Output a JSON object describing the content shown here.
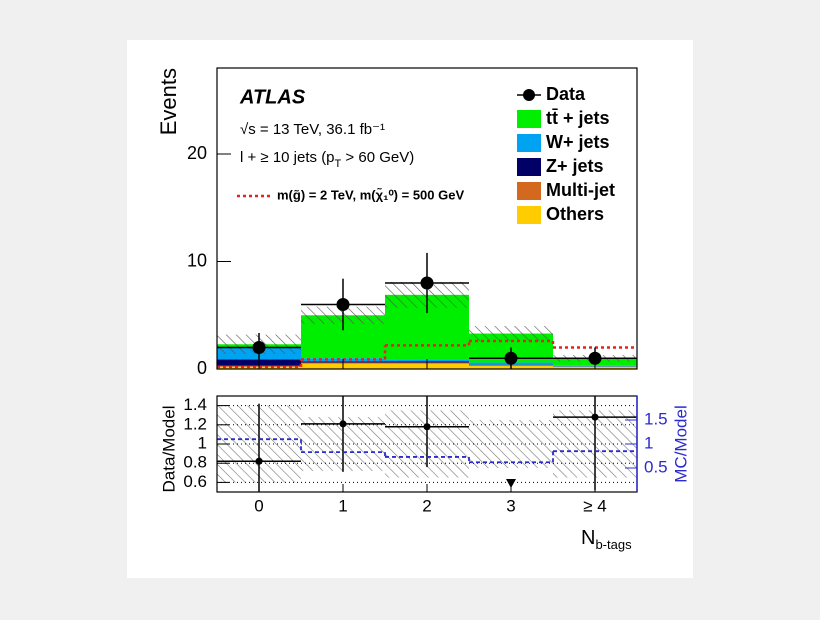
{
  "chart_data": [
    {
      "type": "stacked_bar",
      "experiment": "ATLAS",
      "energy": "√s = 13 TeV, 36.1 fb⁻¹",
      "selection": [
        "l + ≥ 10 jets (p",
        "T",
        " > 60 GeV)"
      ],
      "ylabel": "Events",
      "xlabel": [
        "N",
        "b-tags"
      ],
      "categories": [
        "0",
        "1",
        "2",
        "3",
        "≥ 4"
      ],
      "ylim": [
        0,
        28
      ],
      "yticks": [
        0,
        10,
        20
      ],
      "series": [
        {
          "name": "Others",
          "color": "#ffcc00",
          "values": [
            0.2,
            0.5,
            0.5,
            0.3,
            0.2
          ]
        },
        {
          "name": "Multi-jet",
          "color": "#d2691e",
          "values": [
            0.1,
            0.1,
            0.1,
            0.05,
            0.02
          ]
        },
        {
          "name": "Z+ jets",
          "color": "#000066",
          "values": [
            0.6,
            0.1,
            0.1,
            0.05,
            0.02
          ]
        },
        {
          "name": "W+ jets",
          "color": "#00a2f2",
          "values": [
            1.1,
            0.3,
            0.2,
            0.2,
            0.06
          ]
        },
        {
          "name": "tt̄ + jets",
          "color": "#00ee00",
          "values": [
            0.3,
            4.0,
            6.0,
            2.7,
            0.7
          ]
        }
      ],
      "uncertainty": [
        0.9,
        0.8,
        1.2,
        0.7,
        0.3
      ],
      "data": {
        "name": "Data",
        "color": "#000000",
        "values": [
          2,
          6,
          8,
          1,
          1
        ],
        "err_low": [
          1.2,
          2.4,
          2.8,
          1,
          0.5
        ],
        "err_high": [
          1.35,
          2.4,
          2.8,
          1,
          1
        ]
      },
      "signal": {
        "name": "m(g̃) = 2 TeV, m(χ̃₁⁰) = 500 GeV",
        "color": "#e8221b",
        "values": [
          0.2,
          0.9,
          2.2,
          2.6,
          2.0
        ]
      }
    },
    {
      "type": "ratio",
      "ylabel": "Data/Model",
      "y2label": "MC/Model",
      "ylim": [
        0.5,
        1.5
      ],
      "yticks": [
        0.6,
        0.8,
        1,
        1.2,
        1.4
      ],
      "y2lim": [
        0,
        2
      ],
      "y2ticks": [
        0.5,
        1,
        1.5
      ],
      "band": [
        0.4,
        0.28,
        0.35,
        0.25,
        0.35
      ],
      "series": [
        {
          "color": "#000000",
          "values": [
            0.82,
            1.21,
            1.18,
            0.3,
            1.28
          ],
          "err_low": [
            0.6,
            0.5,
            0.42,
            null,
            0.76
          ],
          "err_high": [
            0.6,
            0.5,
            0.42,
            null,
            0.5
          ]
        },
        {
          "axis": "y2",
          "color": "#2b2bd0",
          "values": [
            1.1,
            0.83,
            0.73,
            0.62,
            0.85
          ]
        }
      ]
    }
  ]
}
